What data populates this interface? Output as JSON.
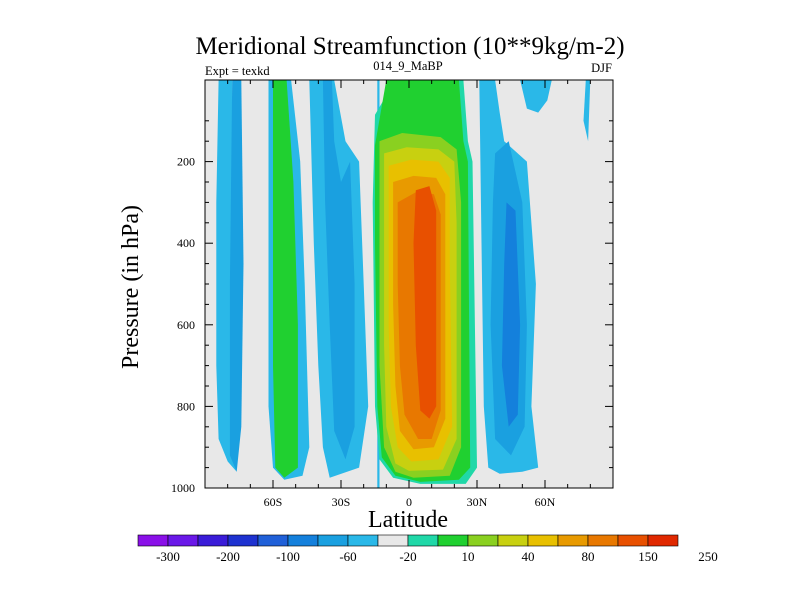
{
  "chart_data": {
    "type": "heatmap",
    "title": "Meridional Streamfunction (10**9kg/m-2)",
    "subtitle_left": "Expt = texkd",
    "subtitle_center": "014_9_MaBP",
    "subtitle_right": "DJF",
    "xlabel": "Latitude",
    "ylabel": "Pressure (in hPa)",
    "xlim": [
      -90,
      90
    ],
    "ylim": [
      1000,
      0
    ],
    "x_ticks": [
      {
        "value": -60,
        "label": "60S"
      },
      {
        "value": -30,
        "label": "30S"
      },
      {
        "value": 0,
        "label": "0"
      },
      {
        "value": 30,
        "label": "30N"
      },
      {
        "value": 60,
        "label": "60N"
      }
    ],
    "y_ticks": [
      {
        "value": 200,
        "label": "200"
      },
      {
        "value": 400,
        "label": "400"
      },
      {
        "value": 600,
        "label": "600"
      },
      {
        "value": 800,
        "label": "800"
      },
      {
        "value": 1000,
        "label": "1000"
      }
    ],
    "background_color": "#e8e8e8",
    "colorbar": {
      "colors": [
        "#8a10e8",
        "#6a18e8",
        "#3a1cd8",
        "#1e32d0",
        "#2060d8",
        "#1480dc",
        "#1aa0e0",
        "#2ab8e8",
        "#e8e8e8",
        "#20d8a8",
        "#20d030",
        "#8ad020",
        "#c8d010",
        "#e8c000",
        "#e89a00",
        "#e87800",
        "#e85000",
        "#e02800"
      ],
      "labels": [
        {
          "after_box": 1,
          "text": "-300"
        },
        {
          "after_box": 3,
          "text": "-200"
        },
        {
          "after_box": 5,
          "text": "-100"
        },
        {
          "after_box": 7,
          "text": "-60"
        },
        {
          "after_box": 9,
          "text": "-20"
        },
        {
          "after_box": 11,
          "text": "10"
        },
        {
          "after_box": 13,
          "text": "40"
        },
        {
          "after_box": 15,
          "text": "80"
        },
        {
          "after_box": 17,
          "text": "150"
        },
        {
          "after_box": 19,
          "text": "250"
        }
      ]
    },
    "regions": [
      {
        "name": "band-south-outer-level1",
        "color": "#2ab8e8",
        "points": [
          [
            -84,
            0
          ],
          [
            -78,
            0
          ],
          [
            -78,
            500
          ],
          [
            -78,
            900
          ],
          [
            -76,
            960
          ],
          [
            -80,
            935
          ],
          [
            -84,
            880
          ],
          [
            -85,
            700
          ],
          [
            -85,
            300
          ]
        ]
      },
      {
        "name": "band-south-outer-level2",
        "color": "#1aa0e0",
        "points": [
          [
            -78,
            0
          ],
          [
            -74,
            0
          ],
          [
            -73,
            450
          ],
          [
            -74,
            850
          ],
          [
            -76,
            960
          ],
          [
            -79,
            920
          ],
          [
            -79,
            500
          ]
        ]
      },
      {
        "name": "band-south-green-outer",
        "color": "#2ab8e8",
        "points": [
          [
            -62,
            0
          ],
          [
            -52,
            0
          ],
          [
            -48,
            200
          ],
          [
            -46,
            500
          ],
          [
            -44,
            900
          ],
          [
            -47,
            970
          ],
          [
            -55,
            980
          ],
          [
            -60,
            950
          ],
          [
            -62,
            800
          ],
          [
            -62,
            200
          ]
        ]
      },
      {
        "name": "band-south-green-inner",
        "color": "#20d030",
        "points": [
          [
            -60,
            0
          ],
          [
            -54,
            0
          ],
          [
            -51,
            250
          ],
          [
            -49,
            600
          ],
          [
            -49,
            950
          ],
          [
            -55,
            975
          ],
          [
            -59,
            950
          ],
          [
            -60,
            700
          ],
          [
            -60,
            300
          ]
        ]
      },
      {
        "name": "band-south-mid-level1",
        "color": "#2ab8e8",
        "points": [
          [
            -44,
            0
          ],
          [
            -33,
            0
          ],
          [
            -28,
            150
          ],
          [
            -22,
            200
          ],
          [
            -20,
            500
          ],
          [
            -18,
            800
          ],
          [
            -22,
            950
          ],
          [
            -35,
            975
          ],
          [
            -38,
            900
          ],
          [
            -40,
            700
          ],
          [
            -42,
            400
          ]
        ]
      },
      {
        "name": "band-south-mid-level2",
        "color": "#1aa0e0",
        "points": [
          [
            -38,
            0
          ],
          [
            -34,
            0
          ],
          [
            -33,
            150
          ],
          [
            -30,
            250
          ],
          [
            -26,
            200
          ],
          [
            -24,
            500
          ],
          [
            -24,
            850
          ],
          [
            -28,
            930
          ],
          [
            -33,
            860
          ],
          [
            -35,
            600
          ],
          [
            -37,
            300
          ]
        ]
      },
      {
        "name": "band-south-strip-level1",
        "color": "#2ab8e8",
        "points": [
          [
            -14,
            0
          ],
          [
            -13,
            0
          ],
          [
            -13,
            1000
          ],
          [
            -14,
            1000
          ]
        ]
      },
      {
        "name": "band-equator-level0",
        "color": "#20d8a8",
        "points": [
          [
            -15,
            85
          ],
          [
            -6,
            0
          ],
          [
            24,
            0
          ],
          [
            26,
            150
          ],
          [
            28,
            200
          ],
          [
            30,
            950
          ],
          [
            25,
            990
          ],
          [
            5,
            990
          ],
          [
            -7,
            975
          ],
          [
            -13,
            930
          ],
          [
            -15,
            800
          ],
          [
            -16,
            300
          ]
        ]
      },
      {
        "name": "band-equator-level1",
        "color": "#20d030",
        "points": [
          [
            -15,
            160
          ],
          [
            -10,
            0
          ],
          [
            22,
            0
          ],
          [
            24,
            150
          ],
          [
            26,
            200
          ],
          [
            27,
            950
          ],
          [
            22,
            980
          ],
          [
            5,
            985
          ],
          [
            -6,
            970
          ],
          [
            -12,
            925
          ],
          [
            -14,
            800
          ],
          [
            -15,
            400
          ]
        ]
      },
      {
        "name": "band-equator-level2",
        "color": "#8ad020",
        "points": [
          [
            -13,
            150
          ],
          [
            -3,
            130
          ],
          [
            14,
            140
          ],
          [
            21,
            170
          ],
          [
            23,
            300
          ],
          [
            23,
            900
          ],
          [
            18,
            970
          ],
          [
            2,
            975
          ],
          [
            -6,
            960
          ],
          [
            -11,
            900
          ],
          [
            -13,
            700
          ],
          [
            -13,
            300
          ]
        ]
      },
      {
        "name": "band-equator-level3",
        "color": "#c8d010",
        "points": [
          [
            -11,
            180
          ],
          [
            -1,
            165
          ],
          [
            13,
            170
          ],
          [
            20,
            200
          ],
          [
            21,
            350
          ],
          [
            21,
            880
          ],
          [
            15,
            955
          ],
          [
            0,
            958
          ],
          [
            -6,
            940
          ],
          [
            -10,
            850
          ],
          [
            -11,
            650
          ]
        ]
      },
      {
        "name": "band-equator-level4",
        "color": "#e8c000",
        "points": [
          [
            -9,
            210
          ],
          [
            1,
            195
          ],
          [
            13,
            200
          ],
          [
            18,
            240
          ],
          [
            18,
            450
          ],
          [
            19,
            850
          ],
          [
            13,
            930
          ],
          [
            1,
            935
          ],
          [
            -5,
            900
          ],
          [
            -8,
            800
          ],
          [
            -9,
            600
          ]
        ]
      },
      {
        "name": "band-equator-level5",
        "color": "#e89a00",
        "points": [
          [
            -7,
            250
          ],
          [
            2,
            235
          ],
          [
            12,
            240
          ],
          [
            16,
            280
          ],
          [
            16,
            500
          ],
          [
            16,
            830
          ],
          [
            11,
            900
          ],
          [
            2,
            905
          ],
          [
            -4,
            860
          ],
          [
            -6,
            750
          ],
          [
            -7,
            550
          ]
        ]
      },
      {
        "name": "band-equator-level6",
        "color": "#e87800",
        "points": [
          [
            -5,
            300
          ],
          [
            3,
            275
          ],
          [
            11,
            280
          ],
          [
            14,
            330
          ],
          [
            14,
            550
          ],
          [
            14,
            810
          ],
          [
            10,
            880
          ],
          [
            4,
            880
          ],
          [
            -2,
            820
          ],
          [
            -4,
            700
          ],
          [
            -5,
            500
          ]
        ]
      },
      {
        "name": "band-equator-level7",
        "color": "#e85000",
        "points": [
          [
            3,
            270
          ],
          [
            9,
            260
          ],
          [
            12,
            320
          ],
          [
            12,
            600
          ],
          [
            12,
            800
          ],
          [
            9,
            830
          ],
          [
            5,
            810
          ],
          [
            3,
            650
          ],
          [
            2,
            400
          ]
        ]
      },
      {
        "name": "band-north-level1",
        "color": "#2ab8e8",
        "points": [
          [
            31,
            0
          ],
          [
            38,
            0
          ],
          [
            40,
            80
          ],
          [
            42,
            150
          ],
          [
            52,
            200
          ],
          [
            56,
            500
          ],
          [
            54,
            800
          ],
          [
            57,
            950
          ],
          [
            50,
            960
          ],
          [
            40,
            965
          ],
          [
            35,
            950
          ],
          [
            33,
            800
          ],
          [
            32,
            400
          ]
        ]
      },
      {
        "name": "band-north-level2",
        "color": "#1aa0e0",
        "points": [
          [
            38,
            180
          ],
          [
            44,
            150
          ],
          [
            50,
            300
          ],
          [
            52,
            600
          ],
          [
            51,
            850
          ],
          [
            45,
            920
          ],
          [
            38,
            880
          ],
          [
            36,
            600
          ],
          [
            37,
            300
          ]
        ]
      },
      {
        "name": "band-north-level3",
        "color": "#1480dc",
        "points": [
          [
            43,
            300
          ],
          [
            47,
            320
          ],
          [
            49,
            600
          ],
          [
            48,
            820
          ],
          [
            44,
            850
          ],
          [
            41,
            700
          ],
          [
            42,
            450
          ]
        ]
      },
      {
        "name": "band-north-cap",
        "color": "#2ab8e8",
        "points": [
          [
            49,
            0
          ],
          [
            63,
            0
          ],
          [
            61,
            50
          ],
          [
            57,
            80
          ],
          [
            52,
            70
          ]
        ]
      },
      {
        "name": "band-north-polar",
        "color": "#2ab8e8",
        "points": [
          [
            78,
            0
          ],
          [
            80,
            0
          ],
          [
            79,
            150
          ],
          [
            77,
            100
          ]
        ]
      }
    ]
  }
}
